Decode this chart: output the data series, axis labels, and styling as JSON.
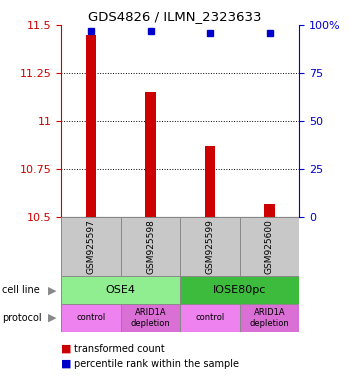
{
  "title": "GDS4826 / ILMN_2323633",
  "samples": [
    "GSM925597",
    "GSM925598",
    "GSM925599",
    "GSM925600"
  ],
  "red_values": [
    11.45,
    11.15,
    10.87,
    10.57
  ],
  "blue_percentiles": [
    97,
    97,
    96,
    96
  ],
  "ylim_left": [
    10.5,
    11.5
  ],
  "ylim_right": [
    0,
    100
  ],
  "yticks_left": [
    10.5,
    10.75,
    11.0,
    11.25,
    11.5
  ],
  "yticks_right": [
    0,
    25,
    50,
    75,
    100
  ],
  "cell_line_row": [
    {
      "label": "OSE4",
      "color": "#90ee90",
      "span": [
        0,
        2
      ]
    },
    {
      "label": "IOSE80pc",
      "color": "#3dbb3d",
      "span": [
        2,
        4
      ]
    }
  ],
  "protocol_row": [
    {
      "label": "control",
      "color": "#ee82ee",
      "span": [
        0,
        1
      ]
    },
    {
      "label": "ARID1A\ndepletion",
      "color": "#da70d6",
      "span": [
        1,
        2
      ]
    },
    {
      "label": "control",
      "color": "#ee82ee",
      "span": [
        2,
        3
      ]
    },
    {
      "label": "ARID1A\ndepletion",
      "color": "#da70d6",
      "span": [
        3,
        4
      ]
    }
  ],
  "bar_color": "#cc0000",
  "dot_color": "#0000cc",
  "sample_bg_color": "#c8c8c8",
  "left_tick_color": "#cc0000",
  "right_tick_color": "#0000cc",
  "bar_width": 0.18
}
